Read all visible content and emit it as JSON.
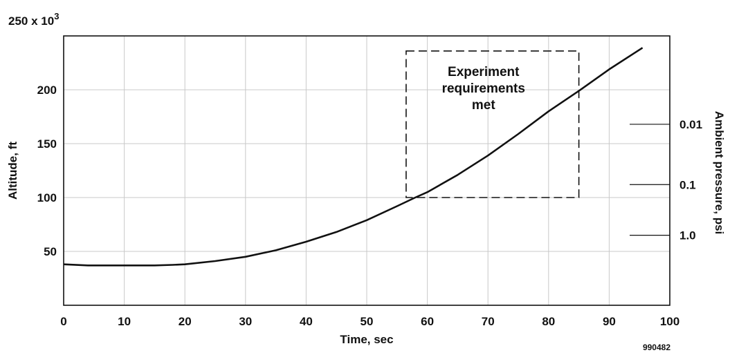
{
  "chart_data": {
    "type": "line",
    "title": "",
    "xlabel": "Time, sec",
    "ylabel": "Altitude, ft",
    "y_exponent_label": {
      "base": "250 x 10",
      "exponent": "3"
    },
    "y2label": "Ambient pressure, psi",
    "xlim": [
      0,
      100
    ],
    "ylim": [
      0,
      250
    ],
    "grid": true,
    "x_ticks": [
      0,
      10,
      20,
      30,
      40,
      50,
      60,
      70,
      80,
      90,
      100
    ],
    "x_tick_labels": [
      "0",
      "10",
      "20",
      "30",
      "40",
      "50",
      "60",
      "70",
      "80",
      "90",
      "100"
    ],
    "y_ticks": [
      50,
      100,
      150,
      200
    ],
    "y_tick_labels": [
      "50",
      "100",
      "150",
      "200"
    ],
    "y2_ticks": [
      {
        "label": "0.01",
        "altitude": 168
      },
      {
        "label": "0.1",
        "altitude": 112
      },
      {
        "label": "1.0",
        "altitude": 65
      }
    ],
    "series": [
      {
        "name": "",
        "x": [
          0,
          4,
          10,
          15,
          18,
          20,
          25,
          30,
          35,
          40,
          45,
          50,
          55,
          58,
          60,
          65,
          70,
          75,
          80,
          85,
          90,
          95.5
        ],
        "y": [
          38,
          37,
          37,
          37,
          37.5,
          38,
          41,
          45,
          51,
          59,
          68,
          79,
          92,
          100,
          105,
          121,
          139,
          159,
          180,
          199,
          219,
          239
        ]
      }
    ],
    "annotation_box": {
      "x_range": [
        56.5,
        85
      ],
      "y_range": [
        100,
        236
      ],
      "label_lines": [
        "Experiment",
        "requirements",
        "met"
      ]
    },
    "figure_id": "990482"
  }
}
